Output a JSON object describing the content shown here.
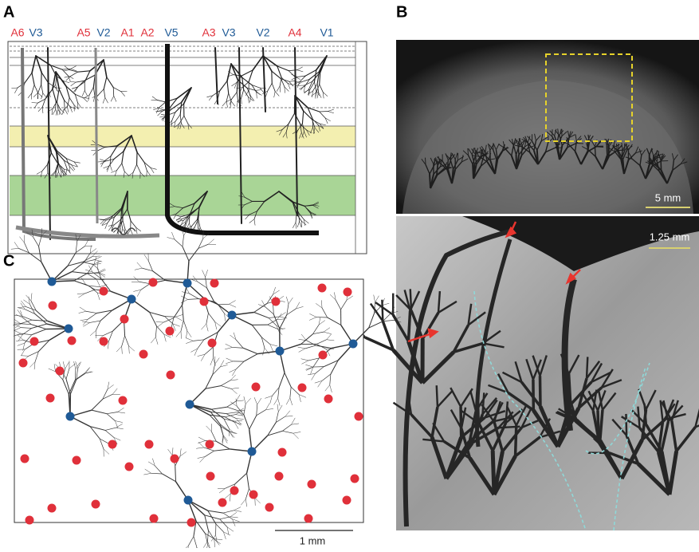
{
  "panels": {
    "a": {
      "label": "A",
      "vessels": [
        {
          "text": "A6",
          "color": "#e0303a"
        },
        {
          "text": "V3",
          "color": "#1f5a96"
        },
        {
          "text": "A5",
          "color": "#e0303a"
        },
        {
          "text": "V2",
          "color": "#1f5a96"
        },
        {
          "text": "A1",
          "color": "#e0303a"
        },
        {
          "text": "A2",
          "color": "#e0303a"
        },
        {
          "text": "V5",
          "color": "#1f5a96"
        },
        {
          "text": "A3",
          "color": "#e0303a"
        },
        {
          "text": "V3",
          "color": "#1f5a96"
        },
        {
          "text": "V2",
          "color": "#1f5a96"
        },
        {
          "text": "A4",
          "color": "#e0303a"
        },
        {
          "text": "V1",
          "color": "#1f5a96"
        }
      ]
    },
    "b": {
      "label": "B",
      "scale_top": "5 mm",
      "scale_bottom": "1.25 mm"
    },
    "c": {
      "label": "C",
      "scale": "1 mm"
    }
  }
}
